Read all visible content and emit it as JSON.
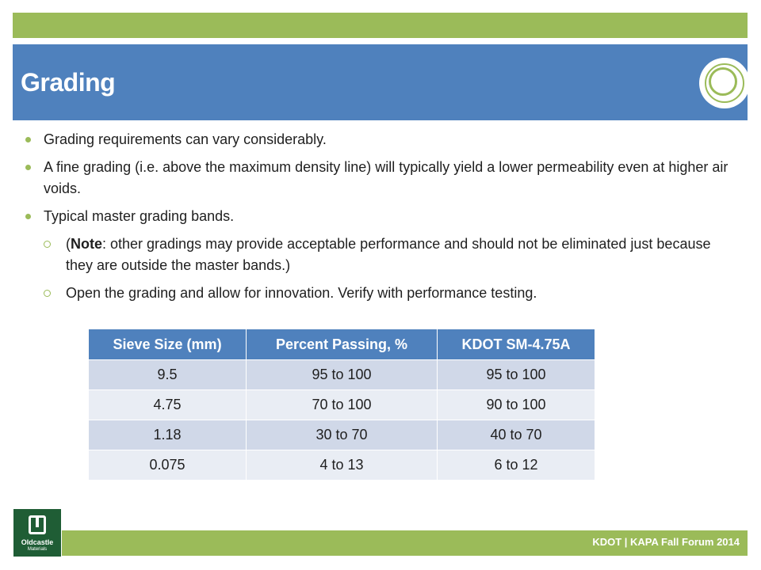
{
  "title": "Grading",
  "bullets": {
    "b1": "Grading requirements can vary considerably.",
    "b2": "A fine grading (i.e. above the maximum density line) will typically yield a lower permeability even at higher air voids.",
    "b3": "Typical master grading bands.",
    "s1_open": "(",
    "s1_bold": "Note",
    "s1_rest": ": other gradings may provide acceptable performance and should not be eliminated just because they are outside the master bands.)",
    "s2": "Open the grading and allow for innovation.  Verify with performance testing."
  },
  "table": {
    "headers": [
      "Sieve Size (mm)",
      "Percent Passing, %",
      "KDOT SM-4.75A"
    ],
    "rows": [
      [
        "9.5",
        "95 to 100",
        "95 to 100"
      ],
      [
        "4.75",
        "70 to 100",
        "90 to 100"
      ],
      [
        "1.18",
        "30 to 70",
        "40 to 70"
      ],
      [
        "0.075",
        "4 to 13",
        "6 to 12"
      ]
    ]
  },
  "footer": "KDOT | KAPA Fall Forum 2014",
  "brand": {
    "name": "Oldcastle",
    "sub": "Materials"
  },
  "colors": {
    "accent_green": "#9bbb59",
    "title_blue": "#4f81bd",
    "row_dark": "#d0d8e8",
    "row_light": "#e9edf4",
    "brand_green": "#1f5d35"
  }
}
